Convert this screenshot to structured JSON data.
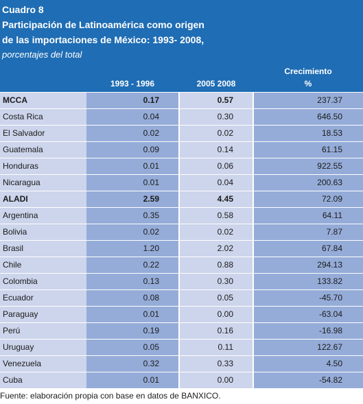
{
  "header": {
    "cuadro": "Cuadro 8",
    "title_line1": "Participación de Latinoamérica como origen",
    "title_line2": "de las importaciones de México: 1993- 2008,",
    "subtitle": "porcentajes del total",
    "col1": "1993 - 1996",
    "col2": "2005 2008",
    "col3_line1": "Crecimiento",
    "col3_line2": "%"
  },
  "rows": [
    {
      "name": "MCCA",
      "v1": "0.17",
      "v2": "0.57",
      "growth": "237.37",
      "bold": true
    },
    {
      "name": "Costa Rica",
      "v1": "0.04",
      "v2": "0.30",
      "growth": "646.50"
    },
    {
      "name": "El Salvador",
      "v1": "0.02",
      "v2": "0.02",
      "growth": "18.53"
    },
    {
      "name": "Guatemala",
      "v1": "0.09",
      "v2": "0.14",
      "growth": "61.15"
    },
    {
      "name": "Honduras",
      "v1": "0.01",
      "v2": "0.06",
      "growth": "922.55"
    },
    {
      "name": "Nicaragua",
      "v1": "0.01",
      "v2": "0.04",
      "growth": "200.63"
    },
    {
      "name": "ALADI",
      "v1": "2.59",
      "v2": "4.45",
      "growth": "72.09",
      "bold": true
    },
    {
      "name": "Argentina",
      "v1": "0.35",
      "v2": "0.58",
      "growth": "64.11"
    },
    {
      "name": "Bolivia",
      "v1": "0.02",
      "v2": "0.02",
      "growth": "7.87"
    },
    {
      "name": "Brasil",
      "v1": "1.20",
      "v2": "2.02",
      "growth": "67.84"
    },
    {
      "name": "Chile",
      "v1": "0.22",
      "v2": "0.88",
      "growth": "294.13"
    },
    {
      "name": "Colombia",
      "v1": "0.13",
      "v2": "0.30",
      "growth": "133.82"
    },
    {
      "name": "Ecuador",
      "v1": "0.08",
      "v2": "0.05",
      "growth": "-45.70"
    },
    {
      "name": "Paraguay",
      "v1": "0.01",
      "v2": "0.00",
      "growth": "-63.04"
    },
    {
      "name": "Perú",
      "v1": "0.19",
      "v2": "0.16",
      "growth": "-16.98"
    },
    {
      "name": "Uruguay",
      "v1": "0.05",
      "v2": "0.11",
      "growth": "122.67"
    },
    {
      "name": "Venezuela",
      "v1": "0.32",
      "v2": "0.33",
      "growth": "4.50"
    },
    {
      "name": "Cuba",
      "v1": "0.01",
      "v2": "0.00",
      "growth": "-54.82"
    }
  ],
  "footer": "Fuente: elaboración propia con base en datos de BANXICO."
}
